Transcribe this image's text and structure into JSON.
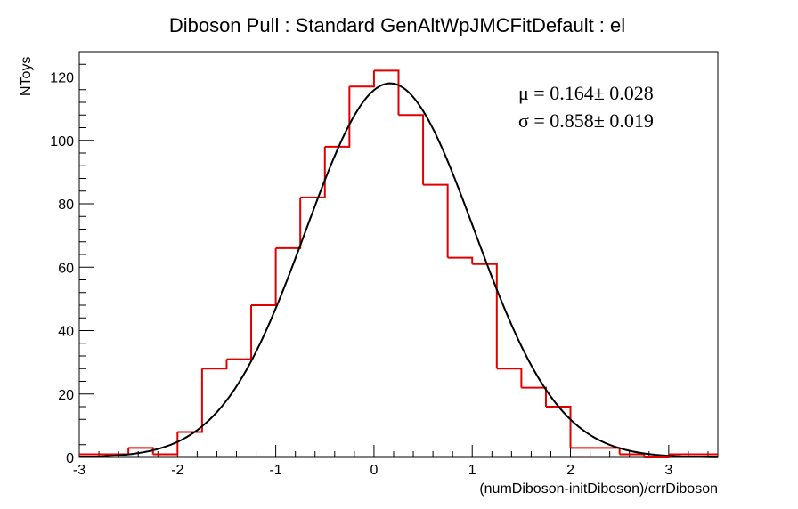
{
  "chart_data": {
    "type": "histogram",
    "title": "Diboson Pull : Standard GenAltWpJMCFitDefault : el",
    "xlabel": "(numDiboson-initDiboson)/errDiboson",
    "ylabel": "NToys",
    "xlim": [
      -3,
      3.5
    ],
    "ylim": [
      0,
      128
    ],
    "x_ticks": [
      -3,
      -2,
      -1,
      0,
      1,
      2,
      3
    ],
    "y_ticks": [
      0,
      20,
      40,
      60,
      80,
      100,
      120
    ],
    "bin_edges": [
      -3.0,
      -2.75,
      -2.5,
      -2.25,
      -2.0,
      -1.75,
      -1.5,
      -1.25,
      -1.0,
      -0.75,
      -0.5,
      -0.25,
      0.0,
      0.25,
      0.5,
      0.75,
      1.0,
      1.25,
      1.5,
      1.75,
      2.0,
      2.25,
      2.5,
      2.75,
      3.0,
      3.25,
      3.5
    ],
    "counts": [
      1,
      1,
      3,
      1,
      8,
      28,
      31,
      48,
      66,
      82,
      98,
      117,
      122,
      108,
      86,
      63,
      61,
      28,
      22,
      16,
      3,
      3,
      1,
      0,
      1,
      1
    ],
    "histogram_color": "#e00000",
    "fit": {
      "type": "gaussian",
      "color": "#000000",
      "amplitude": 118,
      "mean": 0.164,
      "sigma": 0.858
    },
    "stats": {
      "mu_label": "μ =  0.164± 0.028",
      "sigma_label": "σ =  0.858± 0.019"
    },
    "grid": false
  }
}
